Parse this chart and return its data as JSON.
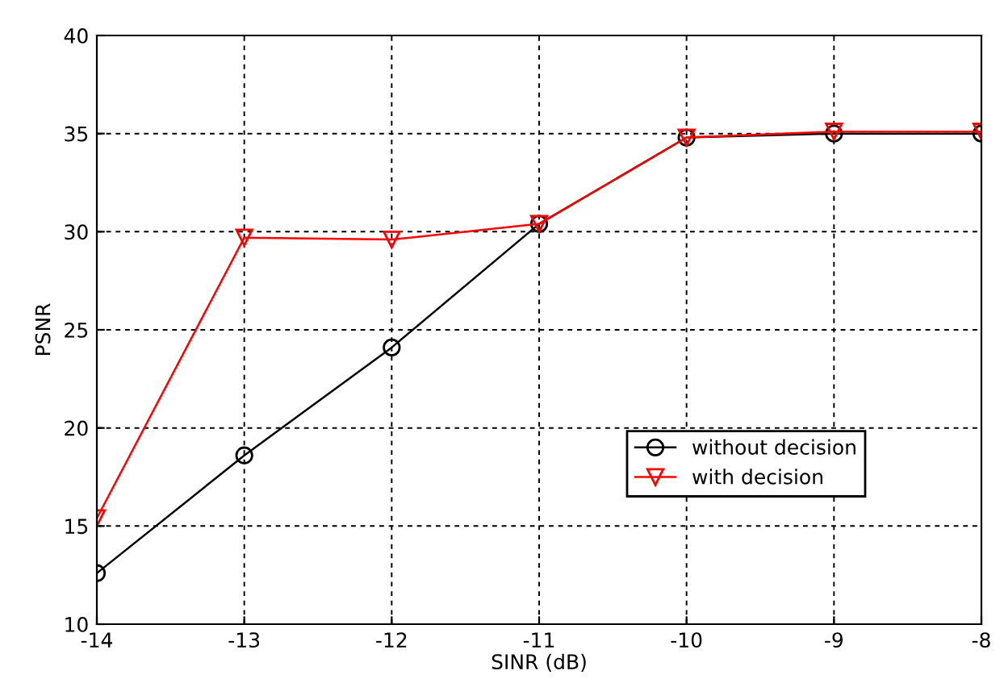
{
  "chart_data": {
    "type": "line",
    "xlabel": "SINR (dB)",
    "ylabel": "PSNR",
    "x": [
      -14,
      -13,
      -12,
      -11,
      -10,
      -9,
      -8
    ],
    "series": [
      {
        "name": "without decision",
        "color": "#000000",
        "marker": "circle",
        "values": [
          12.6,
          18.6,
          24.1,
          30.4,
          34.8,
          35.0,
          35.0
        ]
      },
      {
        "name": "with decision",
        "color": "#ff0000",
        "marker": "triangle",
        "values": [
          15.4,
          29.7,
          29.6,
          30.4,
          34.8,
          35.1,
          35.1
        ]
      }
    ],
    "xlim": [
      -14,
      -8
    ],
    "xticks": [
      -14,
      -13,
      -12,
      -11,
      -10,
      -9,
      -8
    ],
    "ylim": [
      10,
      40
    ],
    "yticks": [
      10,
      15,
      20,
      25,
      30,
      35,
      40
    ],
    "grid": true,
    "line_style": "solid",
    "legend": "lower right"
  }
}
